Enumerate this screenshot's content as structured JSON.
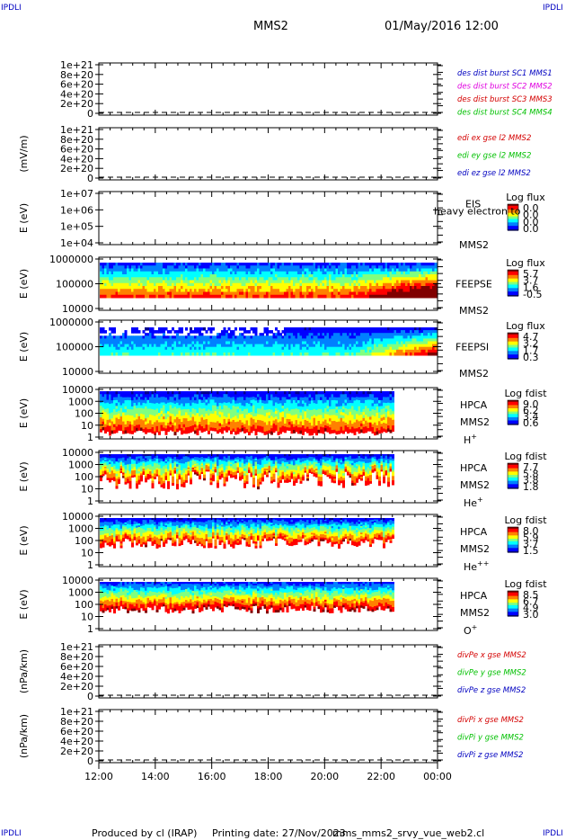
{
  "corner": {
    "tl": "IPDLI",
    "tr": "IPDLI",
    "bl": "IPDLI",
    "br": "IPDLI"
  },
  "header": {
    "spacecraft": "MMS2",
    "date": "01/May/2016 12:00"
  },
  "footer": {
    "produced": "Produced by cl (IRAP)",
    "printed": "Printing date: 27/Nov/2023",
    "file": "mms_mms2_srvy_vue_web2.cl"
  },
  "time_axis": {
    "ticks": [
      "12:00",
      "14:00",
      "16:00",
      "18:00",
      "20:00",
      "22:00",
      "00:00"
    ]
  },
  "colors": {
    "red": "#d40000",
    "magenta": "#e000e0",
    "green": "#00c000",
    "blue": "#0000c0"
  },
  "chart_data": [
    {
      "type": "line",
      "id": "p1",
      "ylabel": "",
      "yticks": [
        "0",
        "2e+20",
        "4e+20",
        "6e+20",
        "8e+20",
        "1e+21"
      ],
      "series": [
        {
          "name": "des dist burst SC1 MMS1",
          "color": "#0000c0"
        },
        {
          "name": "des dist burst SC2 MMS2",
          "color": "#e000e0"
        },
        {
          "name": "des dist burst SC3 MMS3",
          "color": "#d40000"
        },
        {
          "name": "des dist burst SC4 MMS4",
          "color": "#00c000"
        }
      ]
    },
    {
      "type": "line",
      "id": "p2",
      "ylabel": "(mV/m)",
      "yticks": [
        "0",
        "2e+20",
        "4e+20",
        "6e+20",
        "8e+20",
        "1e+21"
      ],
      "series": [
        {
          "name": "edi ex gse l2 MMS2",
          "color": "#d40000"
        },
        {
          "name": "edi ey gse l2 MMS2",
          "color": "#00c000"
        },
        {
          "name": "edi ez gse l2 MMS2",
          "color": "#0000c0"
        }
      ]
    },
    {
      "type": "heatmap",
      "id": "p3",
      "ylabel": "E (eV)",
      "yticks": [
        "1e+04",
        "1e+05",
        "1e+06",
        "1e+07"
      ],
      "instrument": "EIS",
      "sc": "MMS2",
      "overlay": "heavy electron to",
      "cbar_title": "Log flux",
      "cbar_ticks": [
        "0.0",
        "0.0",
        "0.0",
        "0.0"
      ]
    },
    {
      "type": "heatmap",
      "id": "p4",
      "ylabel": "E (eV)",
      "yticks": [
        "10000",
        "100000",
        "1000000"
      ],
      "instrument": "FEEPSE",
      "sc": "MMS2",
      "cbar_title": "Log flux",
      "cbar_ticks": [
        "5.7",
        "3.7",
        "1.6",
        "-0.5"
      ]
    },
    {
      "type": "heatmap",
      "id": "p5",
      "ylabel": "E (eV)",
      "yticks": [
        "10000",
        "100000",
        "1000000"
      ],
      "instrument": "FEEPSI",
      "sc": "MMS2",
      "cbar_title": "Log flux",
      "cbar_ticks": [
        "4.7",
        "3.2",
        "1.7",
        "0.3"
      ]
    },
    {
      "type": "heatmap",
      "id": "p6",
      "ylabel": "E (eV)",
      "yticks": [
        "1",
        "10",
        "100",
        "1000",
        "10000"
      ],
      "instrument": "HPCA",
      "sc": "MMS2",
      "species": "H",
      "charge": "+",
      "cbar_title": "Log fdist",
      "cbar_ticks": [
        "9.0",
        "6.2",
        "3.4",
        "0.6"
      ]
    },
    {
      "type": "heatmap",
      "id": "p7",
      "ylabel": "E (eV)",
      "yticks": [
        "1",
        "10",
        "100",
        "1000",
        "10000"
      ],
      "instrument": "HPCA",
      "sc": "MMS2",
      "species": "He",
      "charge": "+",
      "cbar_title": "Log fdist",
      "cbar_ticks": [
        "7.7",
        "5.8",
        "3.8",
        "1.8"
      ]
    },
    {
      "type": "heatmap",
      "id": "p8",
      "ylabel": "E (eV)",
      "yticks": [
        "1",
        "10",
        "100",
        "1000",
        "10000"
      ],
      "instrument": "HPCA",
      "sc": "MMS2",
      "species": "He",
      "charge": "++",
      "cbar_title": "Log fdist",
      "cbar_ticks": [
        "8.0",
        "5.9",
        "3.7",
        "1.5"
      ]
    },
    {
      "type": "heatmap",
      "id": "p9",
      "ylabel": "E (eV)",
      "yticks": [
        "1",
        "10",
        "100",
        "1000",
        "10000"
      ],
      "instrument": "HPCA",
      "sc": "MMS2",
      "species": "O",
      "charge": "+",
      "cbar_title": "Log fdist",
      "cbar_ticks": [
        "8.5",
        "6.7",
        "4.9",
        "3.0"
      ]
    },
    {
      "type": "line",
      "id": "p10",
      "ylabel": "(nPa/km)",
      "yticks": [
        "0",
        "2e+20",
        "4e+20",
        "6e+20",
        "8e+20",
        "1e+21"
      ],
      "series": [
        {
          "name": "divPe x gse MMS2",
          "color": "#d40000"
        },
        {
          "name": "divPe y gse MMS2",
          "color": "#00c000"
        },
        {
          "name": "divPe z gse MMS2",
          "color": "#0000c0"
        }
      ]
    },
    {
      "type": "line",
      "id": "p11",
      "ylabel": "(nPa/km)",
      "yticks": [
        "0",
        "2e+20",
        "4e+20",
        "6e+20",
        "8e+20",
        "1e+21"
      ],
      "series": [
        {
          "name": "divPi x gse MMS2",
          "color": "#d40000"
        },
        {
          "name": "divPi y gse MMS2",
          "color": "#00c000"
        },
        {
          "name": "divPi z gse MMS2",
          "color": "#0000c0"
        }
      ]
    }
  ]
}
